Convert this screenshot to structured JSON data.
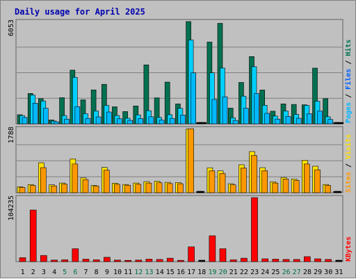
{
  "chart_data": {
    "type": "bar",
    "title": "Daily usage for April 2025",
    "categories": [
      "1",
      "2",
      "3",
      "4",
      "5",
      "6",
      "7",
      "8",
      "9",
      "10",
      "11",
      "12",
      "13",
      "14",
      "15",
      "16",
      "17",
      "18",
      "19",
      "20",
      "21",
      "22",
      "23",
      "24",
      "25",
      "26",
      "27",
      "28",
      "29",
      "30",
      "31"
    ],
    "weekend_days": [
      "5",
      "6",
      "12",
      "13",
      "19",
      "20",
      "26",
      "27"
    ],
    "colors": {
      "title": "#0000b0",
      "hits": "#007050",
      "files": "#00d0ff",
      "pages": "#00b8ff",
      "sites": "#ff9800",
      "visits": "#ffe000",
      "kbytes": "#ff0000",
      "weekday_label": "#000000",
      "weekend_label": "#007040"
    },
    "panels": [
      {
        "id": "hits-files-pages",
        "max_label": "6053",
        "ymax": 6053,
        "grid": true,
        "series": [
          {
            "name": "Hits",
            "values": [
              540,
              1800,
              1490,
              230,
              1550,
              3180,
              1420,
              2010,
              2340,
              1010,
              730,
              1060,
              3490,
              1540,
              2470,
              1180,
              6053,
              0,
              4840,
              5950,
              930,
              2450,
              3980,
              2000,
              750,
              1180,
              1150,
              1130,
              3300,
              1490,
              0
            ]
          },
          {
            "name": "Files",
            "values": [
              490,
              1700,
              1350,
              170,
              490,
              2750,
              600,
              760,
              1090,
              490,
              330,
              530,
              780,
              380,
              540,
              920,
              4960,
              0,
              3020,
              3300,
              360,
              1640,
              3380,
              1100,
              460,
              760,
              560,
              1090,
              1340,
              420,
              0
            ]
          },
          {
            "name": "Pages",
            "values": [
              380,
              1220,
              920,
              120,
              280,
              1020,
              320,
              410,
              700,
              300,
              200,
              310,
              420,
              220,
              320,
              520,
              3020,
              0,
              1440,
              1600,
              200,
              920,
              1800,
              620,
              280,
              440,
              330,
              600,
              760,
              260,
              0
            ]
          }
        ]
      },
      {
        "id": "sites-visits",
        "max_label": "1788",
        "ymax": 1788,
        "grid": true,
        "series": [
          {
            "name": "Visits",
            "values": [
              165,
              228,
              835,
              220,
              270,
              945,
              415,
              205,
              705,
              265,
              230,
              270,
              310,
              320,
              290,
              285,
              1780,
              0,
              695,
              610,
              250,
              780,
              1148,
              700,
              305,
              425,
              380,
              905,
              740,
              230,
              0
            ]
          },
          {
            "name": "Sites",
            "values": [
              150,
              200,
              700,
              190,
              240,
              800,
              365,
              185,
              630,
              235,
              210,
              235,
              270,
              280,
              255,
              250,
              1788,
              0,
              610,
              535,
              220,
              690,
              1040,
              615,
              270,
              380,
              340,
              800,
              640,
              205,
              0
            ]
          }
        ]
      },
      {
        "id": "kbytes",
        "max_label": "104235",
        "ymax": 104235,
        "grid": false,
        "series": [
          {
            "name": "KBytes",
            "values": [
              6500,
              84000,
              10000,
              2500,
              3000,
              21000,
              4000,
              3000,
              7000,
              2500,
              2000,
              2500,
              4000,
              3500,
              5500,
              2000,
              24000,
              0,
              42000,
              21000,
              3000,
              5500,
              104235,
              4500,
              4000,
              3500,
              3500,
              8000,
              4500,
              3500,
              0
            ]
          }
        ]
      }
    ]
  }
}
